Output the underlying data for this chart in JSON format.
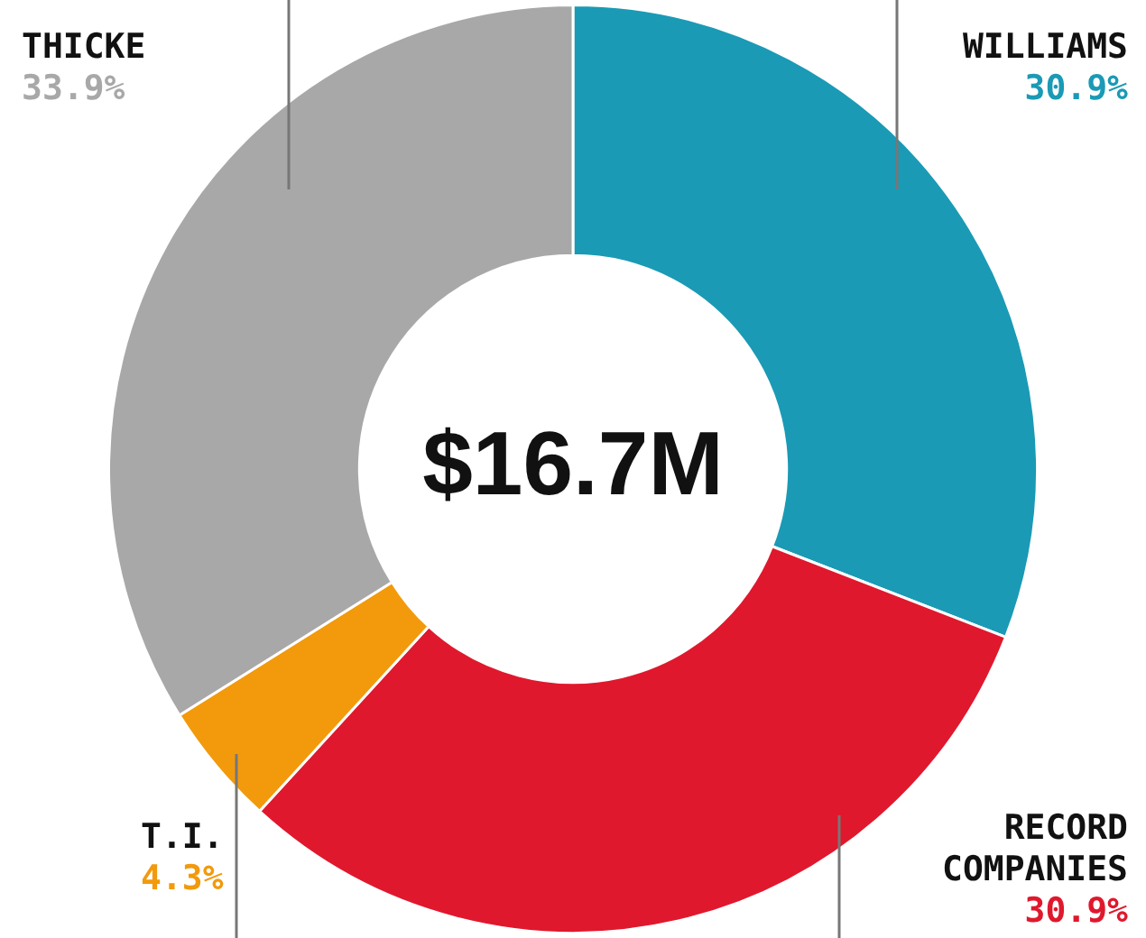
{
  "chart_data": {
    "type": "donut",
    "categories": [
      "WILLIAMS",
      "RECORD COMPANIES",
      "T.I.",
      "THICKE"
    ],
    "values": [
      30.9,
      30.9,
      4.3,
      33.9
    ],
    "colors": [
      "#1a9ab5",
      "#e0182d",
      "#f29a0c",
      "#a8a8a8"
    ],
    "value_labels": [
      "30.9%",
      "30.9%",
      "4.3%",
      "33.9%"
    ],
    "annotations": [
      "$16.7M"
    ],
    "legend": false
  }
}
